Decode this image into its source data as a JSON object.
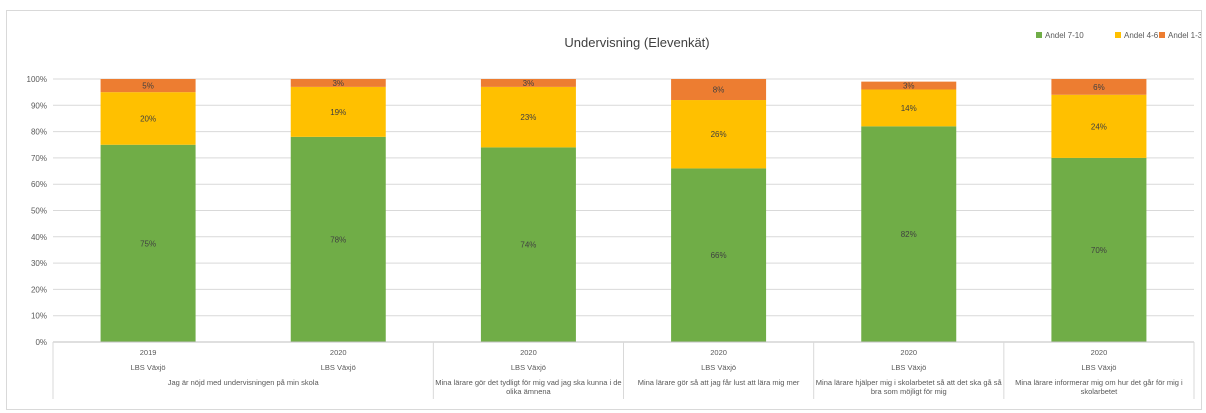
{
  "chart_data": {
    "type": "bar",
    "stacked": true,
    "title": "Undervisning (Elevenkät)",
    "ylim": [
      0,
      100
    ],
    "y_ticks": [
      "0%",
      "10%",
      "20%",
      "30%",
      "40%",
      "50%",
      "60%",
      "70%",
      "80%",
      "90%",
      "100%"
    ],
    "legend_position": "top-right",
    "grid": true,
    "legend": [
      {
        "name": "Andel 7-10",
        "color": "#70ad47"
      },
      {
        "name": "Andel 4-6",
        "color": "#ffc000"
      },
      {
        "name": "Andel 1-3",
        "color": "#ed7d31"
      }
    ],
    "categories": [
      {
        "year": "2019",
        "unit": "LBS Växjö"
      },
      {
        "year": "2020",
        "unit": "LBS Växjö"
      },
      {
        "year": "2020",
        "unit": "LBS Växjö"
      },
      {
        "year": "2020",
        "unit": "LBS Växjö"
      },
      {
        "year": "2020",
        "unit": "LBS Växjö"
      },
      {
        "year": "2020",
        "unit": "LBS Växjö"
      }
    ],
    "questions": [
      {
        "lines": [
          "Jag är nöjd med undervisningen på min skola"
        ],
        "span": 2
      },
      {
        "lines": [
          "Mina lärare gör det tydligt för mig vad jag ska kunna i de",
          "olika ämnena"
        ],
        "span": 1
      },
      {
        "lines": [
          "Mina lärare gör så att jag får lust att lära mig mer"
        ],
        "span": 1
      },
      {
        "lines": [
          "Mina lärare hjälper mig i skolarbetet så att det ska gå så",
          "bra som möjligt för mig"
        ],
        "span": 1
      },
      {
        "lines": [
          "Mina lärare informerar mig om hur det går för mig i",
          "skolarbetet"
        ],
        "span": 1
      }
    ],
    "series": [
      {
        "name": "Andel 7-10",
        "values": [
          75,
          78,
          74,
          66,
          82,
          70
        ],
        "labels": [
          "75%",
          "78%",
          "74%",
          "66%",
          "82%",
          "70%"
        ]
      },
      {
        "name": "Andel 4-6",
        "values": [
          20,
          19,
          23,
          26,
          14,
          24
        ],
        "labels": [
          "20%",
          "19%",
          "23%",
          "26%",
          "14%",
          "24%"
        ]
      },
      {
        "name": "Andel 1-3",
        "values": [
          5,
          3,
          3,
          8,
          3,
          6
        ],
        "labels": [
          "5%",
          "3%",
          "3%",
          "8%",
          "3%",
          "6%"
        ]
      }
    ]
  }
}
